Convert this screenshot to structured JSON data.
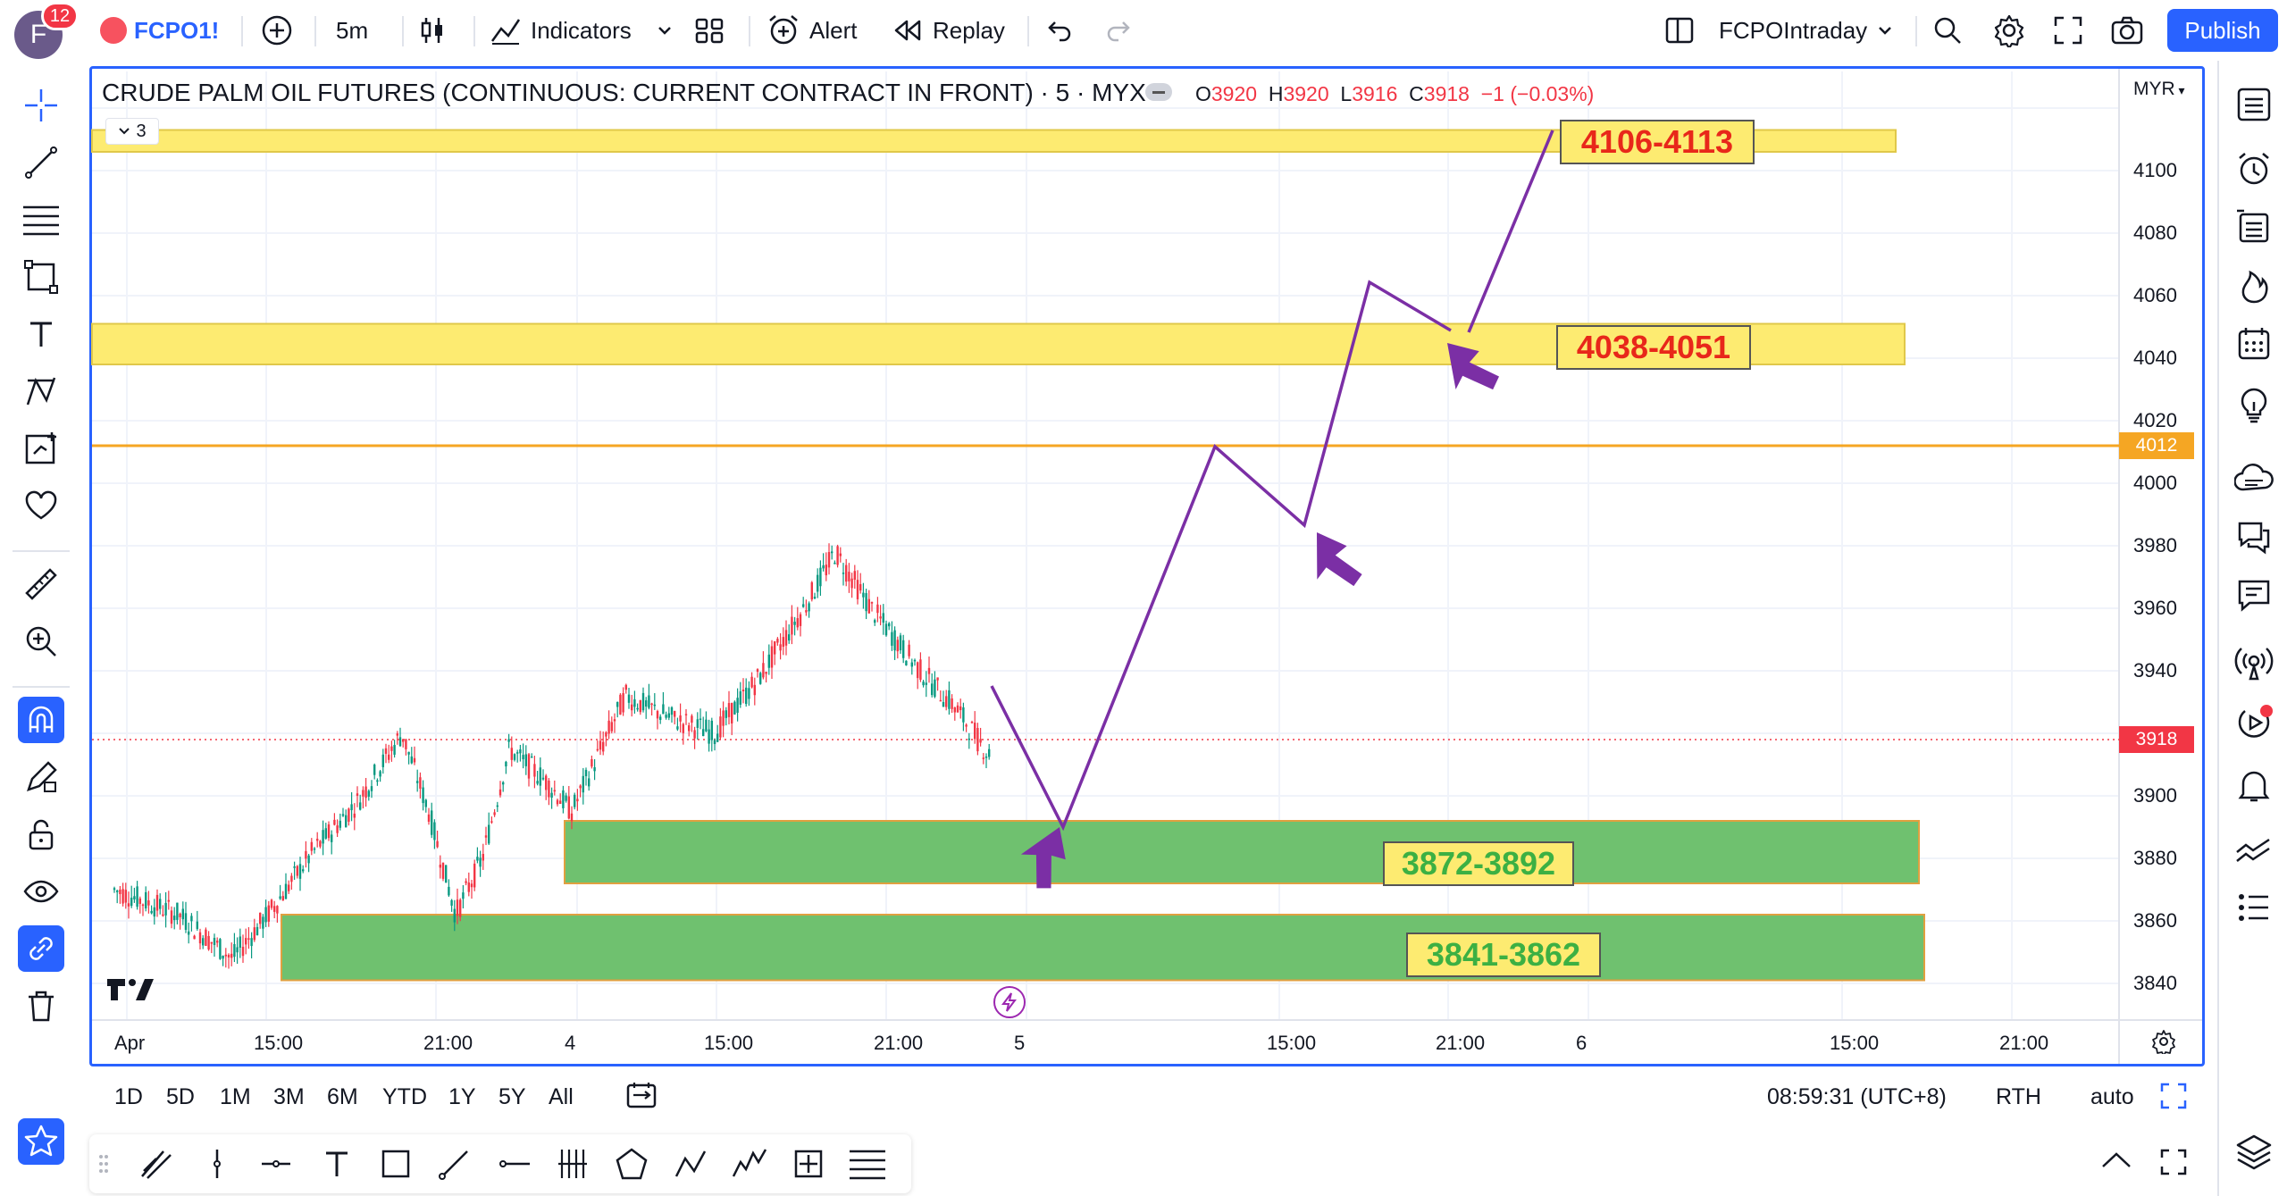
{
  "topbar": {
    "avatar_letter": "F",
    "avatar_badge": "12",
    "symbol": "FCPO1!",
    "interval": "5m",
    "indicators_label": "Indicators",
    "alert_label": "Alert",
    "replay_label": "Replay",
    "layout_name": "FCPOIntraday",
    "publish_label": "Publish"
  },
  "chart": {
    "title": "CRUDE PALM OIL FUTURES (CONTINUOUS: CURRENT CONTRACT IN FRONT) · 5 · MYX",
    "ohlc": {
      "o_key": "O",
      "o": "3920",
      "h_key": "H",
      "h": "3920",
      "l_key": "L",
      "l": "3916",
      "c_key": "C",
      "c": "3918",
      "change": "−1 (−0.03%)"
    },
    "collapse_count": "3",
    "currency": "MYR",
    "price_axis": [
      "4100",
      "4080",
      "4060",
      "4040",
      "4020",
      "4000",
      "3980",
      "3960",
      "3940",
      "3900",
      "3880",
      "3860",
      "3840"
    ],
    "time_axis": [
      "Apr",
      "15:00",
      "21:00",
      "4",
      "15:00",
      "21:00",
      "5",
      "15:00",
      "21:00",
      "6",
      "15:00",
      "21:00"
    ],
    "horizontal_line_price": "4012",
    "last_price": "3918",
    "colors": {
      "accent": "#2962ff",
      "up": "#089981",
      "down": "#f23645",
      "resistance_zone": "#fdeb71",
      "support_zone": "#6fc16f",
      "projection": "#7b2fa5",
      "level_line": "#f5a623"
    },
    "zones": [
      {
        "label": "4106-4113",
        "type": "resistance",
        "low": 4106,
        "high": 4113
      },
      {
        "label": "4038-4051",
        "type": "resistance",
        "low": 4038,
        "high": 4051
      },
      {
        "label": "3872-3892",
        "type": "support",
        "low": 3872,
        "high": 3892
      },
      {
        "label": "3841-3862",
        "type": "support",
        "low": 3841,
        "high": 3862
      }
    ]
  },
  "bottombar": {
    "ranges": [
      "1D",
      "5D",
      "1M",
      "3M",
      "6M",
      "YTD",
      "1Y",
      "5Y",
      "All"
    ],
    "clock": "08:59:31 (UTC+8)",
    "session": "RTH",
    "scale_mode": "auto"
  }
}
